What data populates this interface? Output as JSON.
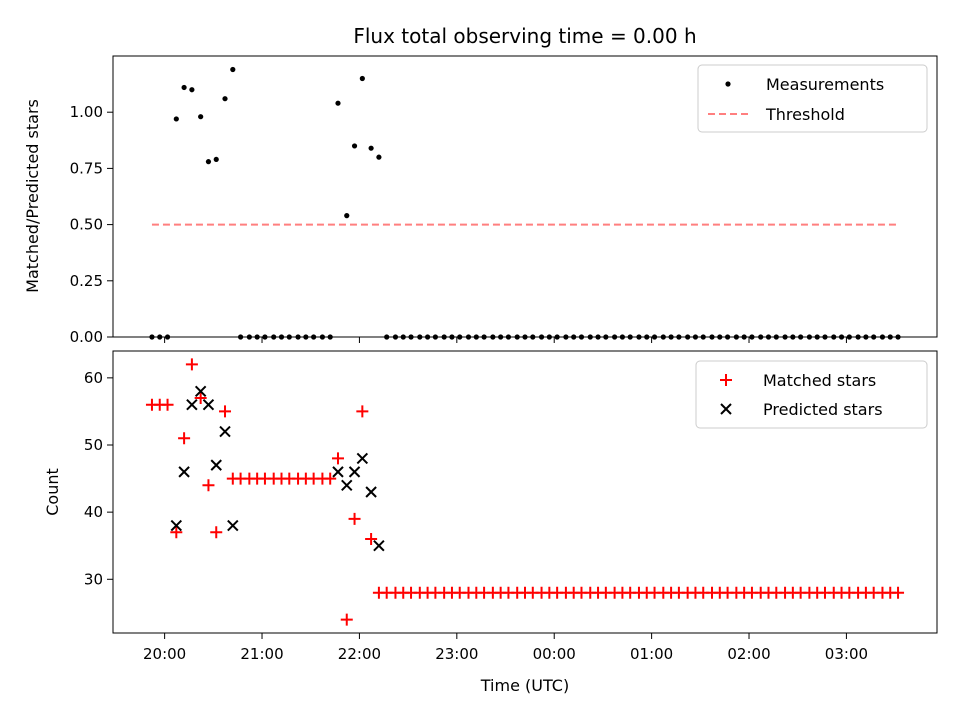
{
  "chart_data": [
    {
      "type": "scatter",
      "title": "Flux total observing time = 0.00 h",
      "xlabel": "",
      "ylabel": "Matched/Predicted stars",
      "ylim": [
        0,
        1.25
      ],
      "yticks": [
        "0.00",
        "0.25",
        "0.50",
        "0.75",
        "1.00"
      ],
      "legend_position": "top-right",
      "series": [
        {
          "name": "Measurements",
          "marker": "dot",
          "color": "#000000",
          "x": [
            19.87,
            19.95,
            20.03,
            20.12,
            20.2,
            20.28,
            20.37,
            20.45,
            20.53,
            20.62,
            20.7,
            20.78,
            20.87,
            20.95,
            21.03,
            21.12,
            21.2,
            21.28,
            21.37,
            21.45,
            21.53,
            21.62,
            21.7,
            21.78,
            21.87,
            21.95,
            22.03,
            22.12,
            22.2,
            22.28,
            22.37,
            22.45,
            22.53,
            22.62,
            22.7,
            22.78,
            22.87,
            22.95,
            23.03,
            23.12,
            23.2,
            23.28,
            23.37,
            23.45,
            23.53,
            23.62,
            23.7,
            23.78,
            23.87,
            23.95,
            24.03,
            24.12,
            24.2,
            24.28,
            24.37,
            24.45,
            24.53,
            24.62,
            24.7,
            24.78,
            24.87,
            24.95,
            25.03,
            25.12,
            25.2,
            25.28,
            25.37,
            25.45,
            25.53,
            25.62,
            25.7,
            25.78,
            25.87,
            25.95,
            26.03,
            26.12,
            26.2,
            26.28,
            26.37,
            26.45,
            26.53,
            26.62,
            26.7,
            26.78,
            26.87,
            26.95,
            27.03,
            27.12,
            27.2,
            27.28,
            27.37,
            27.45,
            27.53
          ],
          "y": [
            0,
            0,
            0,
            0.97,
            1.11,
            1.1,
            0.98,
            0.78,
            0.79,
            1.06,
            1.19,
            0,
            0,
            0,
            0,
            0,
            0,
            0,
            0,
            0,
            0,
            0,
            0,
            1.04,
            0.54,
            0.85,
            1.15,
            0.84,
            0.8,
            0,
            0,
            0,
            0,
            0,
            0,
            0,
            0,
            0,
            0,
            0,
            0,
            0,
            0,
            0,
            0,
            0,
            0,
            0,
            0,
            0,
            0,
            0,
            0,
            0,
            0,
            0,
            0,
            0,
            0,
            0,
            0,
            0,
            0,
            0,
            0,
            0,
            0,
            0,
            0,
            0,
            0,
            0,
            0,
            0,
            0,
            0,
            0,
            0,
            0,
            0,
            0,
            0,
            0,
            0,
            0,
            0,
            0,
            0,
            0,
            0,
            0,
            0,
            0
          ]
        },
        {
          "name": "Threshold",
          "marker": "dashed-line",
          "color": "#ff7f7f",
          "x": [
            19.87,
            27.53
          ],
          "y": [
            0.5,
            0.5
          ]
        }
      ]
    },
    {
      "type": "scatter",
      "title": "",
      "xlabel": "Time (UTC)",
      "ylabel": "Count",
      "ylim": [
        22,
        64
      ],
      "yticks": [
        "30",
        "40",
        "50",
        "60"
      ],
      "xticks": [
        "20:00",
        "21:00",
        "22:00",
        "23:00",
        "00:00",
        "01:00",
        "02:00",
        "03:00"
      ],
      "xtick_values": [
        20,
        21,
        22,
        23,
        24,
        25,
        26,
        27
      ],
      "xlim": [
        19.47,
        27.93
      ],
      "legend_position": "top-right",
      "series": [
        {
          "name": "Matched stars",
          "marker": "plus",
          "color": "#ff0000",
          "x": [
            19.87,
            19.95,
            20.03,
            20.12,
            20.2,
            20.28,
            20.37,
            20.45,
            20.53,
            20.62,
            20.7,
            20.78,
            20.87,
            20.95,
            21.03,
            21.12,
            21.2,
            21.28,
            21.37,
            21.45,
            21.53,
            21.62,
            21.7,
            21.78,
            21.87,
            21.95,
            22.03,
            22.12,
            22.2,
            22.28,
            22.37,
            22.45,
            22.53,
            22.62,
            22.7,
            22.78,
            22.87,
            22.95,
            23.03,
            23.12,
            23.2,
            23.28,
            23.37,
            23.45,
            23.53,
            23.62,
            23.7,
            23.78,
            23.87,
            23.95,
            24.03,
            24.12,
            24.2,
            24.28,
            24.37,
            24.45,
            24.53,
            24.62,
            24.7,
            24.78,
            24.87,
            24.95,
            25.03,
            25.12,
            25.2,
            25.28,
            25.37,
            25.45,
            25.53,
            25.62,
            25.7,
            25.78,
            25.87,
            25.95,
            26.03,
            26.12,
            26.2,
            26.28,
            26.37,
            26.45,
            26.53,
            26.62,
            26.7,
            26.78,
            26.87,
            26.95,
            27.03,
            27.12,
            27.2,
            27.28,
            27.37,
            27.45,
            27.53
          ],
          "y": [
            56,
            56,
            56,
            37,
            51,
            62,
            57,
            44,
            37,
            55,
            45,
            45,
            45,
            45,
            45,
            45,
            45,
            45,
            45,
            45,
            45,
            45,
            45,
            48,
            24,
            39,
            55,
            36,
            28,
            28,
            28,
            28,
            28,
            28,
            28,
            28,
            28,
            28,
            28,
            28,
            28,
            28,
            28,
            28,
            28,
            28,
            28,
            28,
            28,
            28,
            28,
            28,
            28,
            28,
            28,
            28,
            28,
            28,
            28,
            28,
            28,
            28,
            28,
            28,
            28,
            28,
            28,
            28,
            28,
            28,
            28,
            28,
            28,
            28,
            28,
            28,
            28,
            28,
            28,
            28,
            28,
            28,
            28,
            28,
            28,
            28,
            28,
            28,
            28,
            28,
            28,
            28,
            28
          ]
        },
        {
          "name": "Predicted stars",
          "marker": "x",
          "color": "#000000",
          "x": [
            20.12,
            20.2,
            20.28,
            20.37,
            20.45,
            20.53,
            20.62,
            20.7,
            21.78,
            21.87,
            21.95,
            22.03,
            22.12,
            22.2
          ],
          "y": [
            38,
            46,
            56,
            58,
            56,
            47,
            52,
            38,
            46,
            44,
            46,
            48,
            43,
            35
          ]
        }
      ]
    }
  ]
}
